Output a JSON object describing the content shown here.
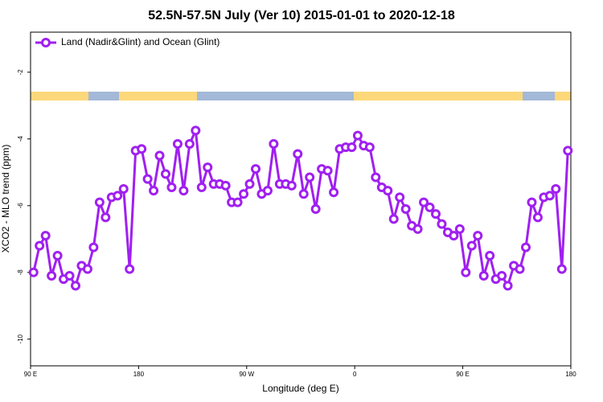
{
  "chart_data": {
    "type": "line",
    "title": "52.5N-57.5N July (Ver 10)   2015-01-01 to 2020-12-18",
    "x_label": "Longitude (deg E)",
    "y_label": "XCO2 - MLO trend (ppm)",
    "xlim": [
      90,
      540
    ],
    "ylim": [
      -10.8,
      -0.8
    ],
    "xticks": [
      {
        "value": 90,
        "label": "90 E"
      },
      {
        "value": 180,
        "label": "180"
      },
      {
        "value": 270,
        "label": "90 W"
      },
      {
        "value": 360,
        "label": "0"
      },
      {
        "value": 450,
        "label": "90 E"
      },
      {
        "value": 540,
        "label": "180"
      }
    ],
    "yticks": [
      -10,
      -8,
      -6,
      -4,
      -2
    ],
    "legend_position": "upper-left",
    "x": [
      92.5,
      97.5,
      102.5,
      107.5,
      112.5,
      117.5,
      122.5,
      127.5,
      132.5,
      137.5,
      142.5,
      147.5,
      152.5,
      157.5,
      162.5,
      167.5,
      172.5,
      177.5,
      182.5,
      187.5,
      192.5,
      197.5,
      202.5,
      207.5,
      212.5,
      217.5,
      222.5,
      227.5,
      232.5,
      237.5,
      242.5,
      247.5,
      252.5,
      257.5,
      262.5,
      267.5,
      272.5,
      277.5,
      282.5,
      287.5,
      292.5,
      297.5,
      302.5,
      307.5,
      312.5,
      317.5,
      322.5,
      327.5,
      332.5,
      337.5,
      342.5,
      347.5,
      352.5,
      357.5,
      362.5,
      367.5,
      372.5,
      377.5,
      382.5,
      387.5,
      392.5,
      397.5,
      402.5,
      407.5,
      412.5,
      417.5,
      422.5,
      427.5,
      432.5,
      437.5,
      442.5,
      447.5,
      452.5,
      457.5,
      462.5,
      467.5,
      472.5,
      477.5,
      482.5,
      487.5,
      492.5,
      497.5,
      502.5,
      507.5,
      512.5,
      517.5,
      522.5,
      527.5,
      532.5,
      537.5
    ],
    "series": [
      {
        "name": "Land (Nadir&Glint) and Ocean (Glint)",
        "color": "#a020f0",
        "values": [
          -8.0,
          -7.2,
          -6.9,
          -8.1,
          -7.5,
          -8.2,
          -8.1,
          -8.4,
          -7.8,
          -7.9,
          -7.25,
          -5.9,
          -6.35,
          -5.75,
          -5.7,
          -5.5,
          -7.9,
          -4.35,
          -4.3,
          -5.2,
          -5.55,
          -4.5,
          -5.05,
          -5.45,
          -4.15,
          -5.55,
          -4.15,
          -3.75,
          -5.45,
          -4.85,
          -5.35,
          -5.35,
          -5.4,
          -5.9,
          -5.9,
          -5.65,
          -5.35,
          -4.9,
          -5.65,
          -5.55,
          -4.15,
          -5.35,
          -5.35,
          -5.4,
          -4.45,
          -5.65,
          -5.15,
          -6.1,
          -4.9,
          -4.95,
          -5.6,
          -4.3,
          -4.25,
          -4.25,
          -3.9,
          -4.2,
          -4.25,
          -5.15,
          -5.45,
          -5.55,
          -6.4,
          -5.75,
          -6.1,
          -6.6,
          -6.7,
          -5.9,
          -6.05,
          -6.25,
          -6.55,
          -6.8,
          -6.9,
          -6.7,
          -8.0,
          -7.2,
          -6.9,
          -8.1,
          -7.5,
          -8.2,
          -8.1,
          -8.4,
          -7.8,
          -7.9,
          -7.25,
          -5.9,
          -6.35,
          -5.75,
          -5.7,
          -5.5,
          -7.9,
          -4.35
        ]
      }
    ]
  }
}
